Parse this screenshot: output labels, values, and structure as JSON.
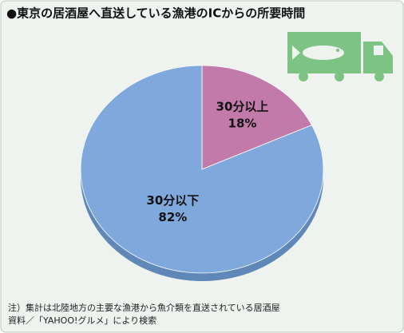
{
  "chart_data": {
    "type": "pie",
    "title": "●東京の居酒屋へ直送している漁港のICからの所要時間",
    "categories": [
      "30分以上",
      "30分以下"
    ],
    "values": [
      18,
      82
    ],
    "value_labels": [
      "18%",
      "82%"
    ],
    "colors": [
      "#c27aaa",
      "#7fa9dc"
    ],
    "notes": [
      "注）集計は北陸地方の主要な漁港から魚介類を直送されている居酒屋",
      "資料／「YAHOO!グルメ」により検索"
    ]
  }
}
